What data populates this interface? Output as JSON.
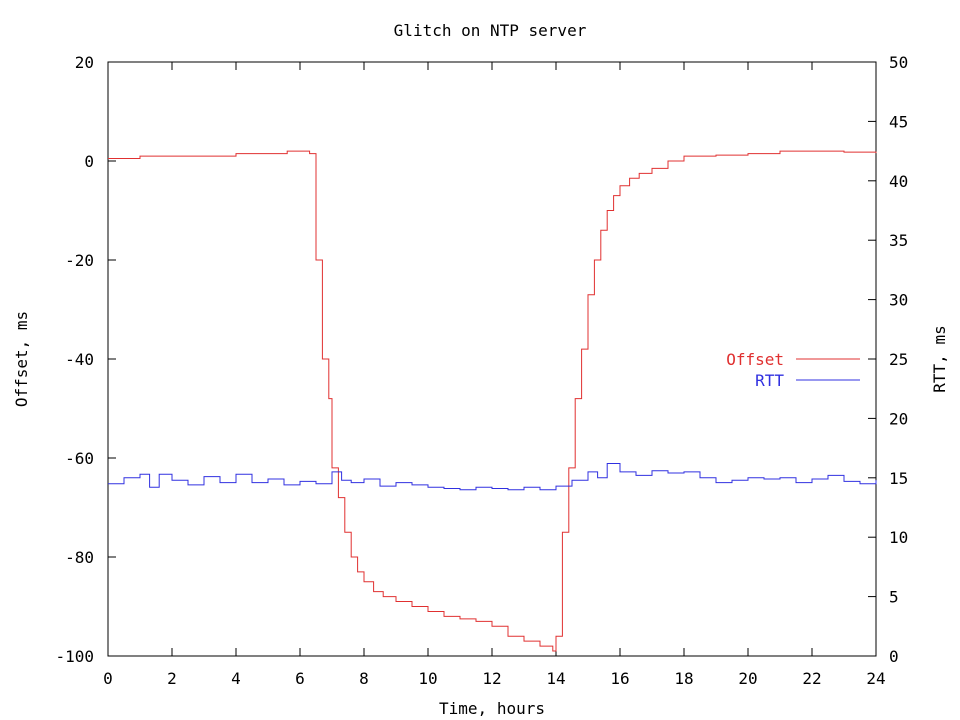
{
  "chart_data": {
    "type": "line",
    "title": "Glitch on NTP server",
    "xlabel": "Time, hours",
    "ylabel_left": "Offset, ms",
    "ylabel_right": "RTT, ms",
    "xlim": [
      0,
      24
    ],
    "ylim_left": [
      -100,
      20
    ],
    "ylim_right": [
      0,
      50
    ],
    "xticks": [
      "0",
      "2",
      "4",
      "6",
      "8",
      "10",
      "12",
      "14",
      "16",
      "18",
      "20",
      "22",
      "24"
    ],
    "yticks_left": [
      "20",
      "0",
      "-20",
      "-40",
      "-60",
      "-80",
      "-100"
    ],
    "yticks_right": [
      "50",
      "45",
      "40",
      "35",
      "30",
      "25",
      "20",
      "15",
      "10",
      "5",
      "0"
    ],
    "grid": false,
    "legend_position": "right-middle",
    "series": [
      {
        "name": "Offset",
        "axis": "left",
        "color": "#e03030",
        "x": [
          0,
          0.5,
          1,
          2,
          3,
          4,
          5,
          5.6,
          6.0,
          6.3,
          6.5,
          6.7,
          6.9,
          7.0,
          7.2,
          7.4,
          7.6,
          7.8,
          8.0,
          8.3,
          8.6,
          9.0,
          9.5,
          10.0,
          10.5,
          11.0,
          11.5,
          12.0,
          12.5,
          13.0,
          13.5,
          13.9,
          14.0,
          14.2,
          14.4,
          14.6,
          14.8,
          15.0,
          15.2,
          15.4,
          15.6,
          15.8,
          16.0,
          16.3,
          16.6,
          17.0,
          17.5,
          18.0,
          19.0,
          20.0,
          21.0,
          22.0,
          23.0,
          24.0
        ],
        "y": [
          0.5,
          0.5,
          1.0,
          1.0,
          1.0,
          1.5,
          1.5,
          2.0,
          2.0,
          1.5,
          -20,
          -40,
          -48,
          -62,
          -68,
          -75,
          -80,
          -83,
          -85,
          -87,
          -88,
          -89,
          -90,
          -91,
          -92,
          -92.5,
          -93,
          -94,
          -96,
          -97,
          -98,
          -99,
          -96,
          -75,
          -62,
          -48,
          -38,
          -27,
          -20,
          -14,
          -10,
          -7,
          -5,
          -3.5,
          -2.5,
          -1.5,
          0,
          1.0,
          1.2,
          1.5,
          2.0,
          2.0,
          1.8,
          1.6
        ]
      },
      {
        "name": "RTT",
        "axis": "right",
        "color": "#3030e0",
        "x": [
          0,
          0.5,
          1.0,
          1.3,
          1.6,
          2.0,
          2.5,
          3.0,
          3.5,
          4.0,
          4.5,
          5.0,
          5.5,
          6.0,
          6.5,
          7.0,
          7.3,
          7.6,
          8.0,
          8.5,
          9.0,
          9.5,
          10.0,
          10.5,
          11.0,
          11.5,
          12.0,
          12.5,
          13.0,
          13.5,
          14.0,
          14.5,
          15.0,
          15.3,
          15.6,
          16.0,
          16.5,
          17.0,
          17.5,
          18.0,
          18.5,
          19.0,
          19.5,
          20.0,
          20.5,
          21.0,
          21.5,
          22.0,
          22.5,
          23.0,
          23.5,
          24.0
        ],
        "y": [
          14.5,
          15.0,
          15.3,
          14.2,
          15.3,
          14.8,
          14.4,
          15.1,
          14.6,
          15.3,
          14.6,
          14.9,
          14.4,
          14.7,
          14.5,
          15.5,
          14.8,
          14.6,
          14.9,
          14.3,
          14.6,
          14.4,
          14.2,
          14.1,
          14.0,
          14.2,
          14.1,
          14.0,
          14.2,
          14.0,
          14.3,
          14.8,
          15.5,
          15.0,
          16.2,
          15.5,
          15.2,
          15.6,
          15.4,
          15.5,
          15.0,
          14.6,
          14.8,
          15.0,
          14.9,
          15.0,
          14.6,
          14.9,
          15.2,
          14.7,
          14.5,
          14.8
        ]
      }
    ]
  }
}
